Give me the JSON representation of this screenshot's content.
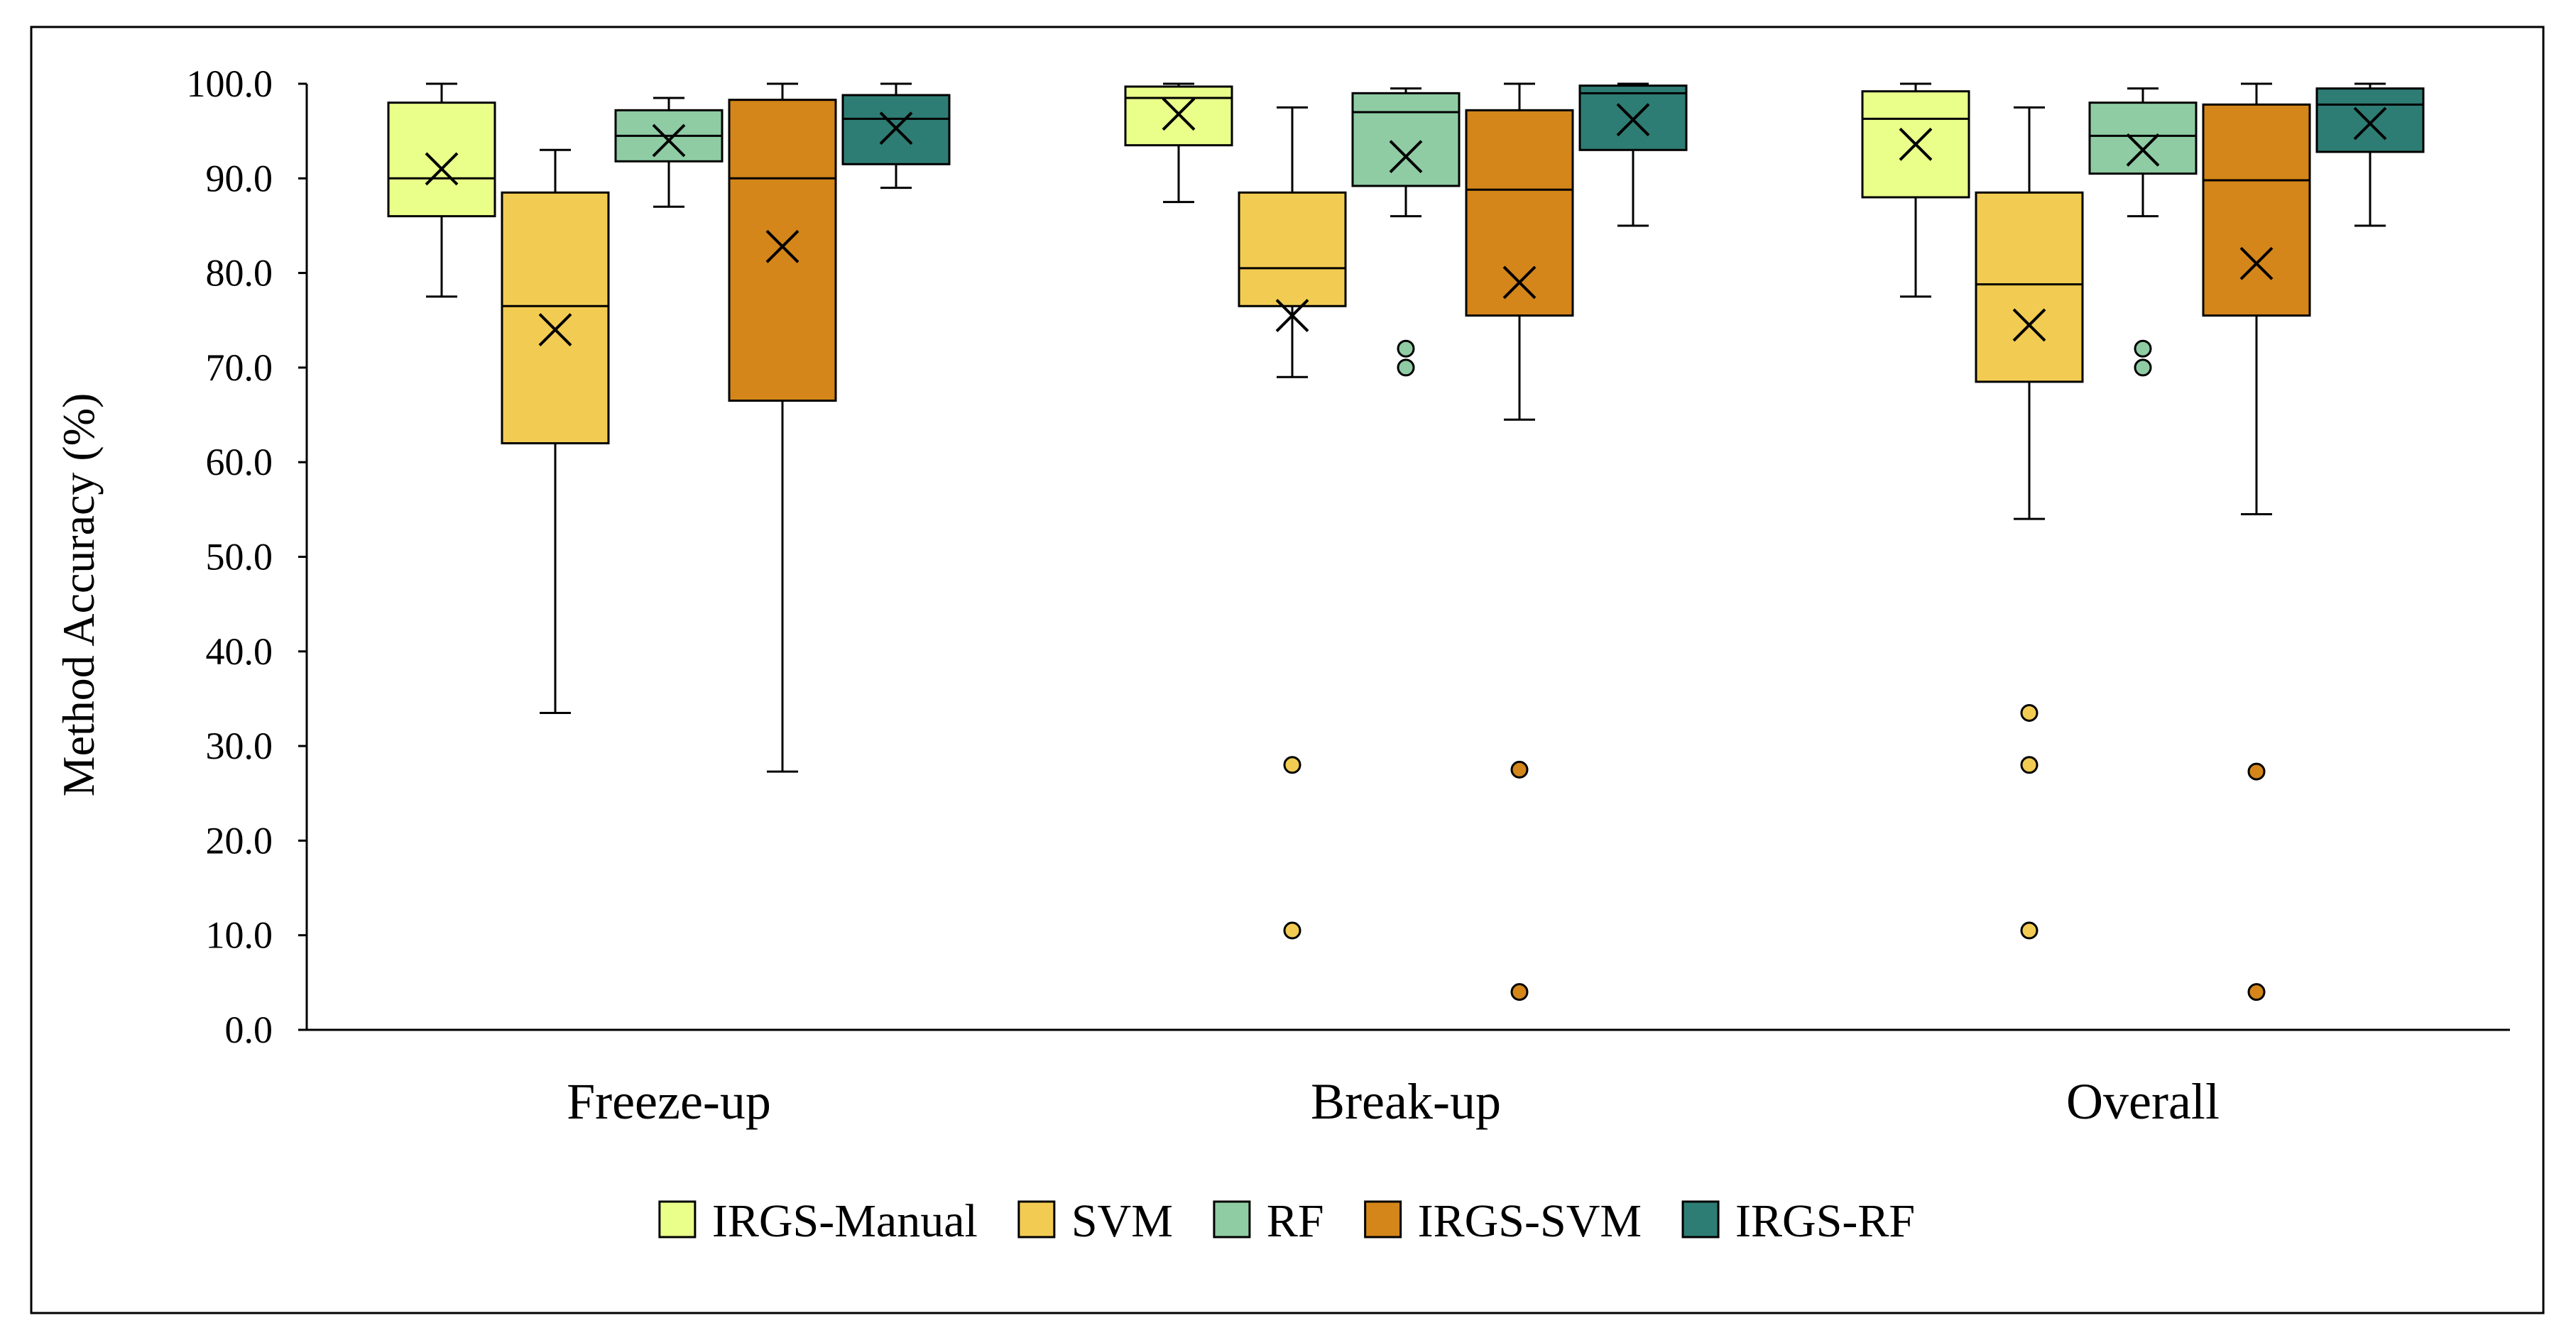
{
  "chart_data": {
    "type": "boxplot",
    "title": "",
    "xlabel": "",
    "ylabel": "Method Accuracy (%)",
    "ylim": [
      0,
      100
    ],
    "yticks": [
      0,
      10,
      20,
      30,
      40,
      50,
      60,
      70,
      80,
      90,
      100
    ],
    "ytick_labels": [
      "0.0",
      "10.0",
      "20.0",
      "30.0",
      "40.0",
      "50.0",
      "60.0",
      "70.0",
      "80.0",
      "90.0",
      "100.0"
    ],
    "categories": [
      "Freeze-up",
      "Break-up",
      "Overall"
    ],
    "legend_position": "bottom",
    "series": [
      {
        "name": "IRGS-Manual",
        "color": "#EAFF8A",
        "boxes": [
          {
            "min": 77.5,
            "q1": 86.0,
            "median": 90.0,
            "q3": 98.0,
            "max": 100.0,
            "mean": 91.0,
            "outliers": []
          },
          {
            "min": 87.5,
            "q1": 93.5,
            "median": 98.5,
            "q3": 99.7,
            "max": 100.0,
            "mean": 96.8,
            "outliers": []
          },
          {
            "min": 77.5,
            "q1": 88.0,
            "median": 96.3,
            "q3": 99.2,
            "max": 100.0,
            "mean": 93.6,
            "outliers": []
          }
        ]
      },
      {
        "name": "SVM",
        "color": "#F2CC52",
        "boxes": [
          {
            "min": 33.5,
            "q1": 62.0,
            "median": 76.5,
            "q3": 88.5,
            "max": 93.0,
            "mean": 74.0,
            "outliers": []
          },
          {
            "min": 69.0,
            "q1": 76.5,
            "median": 80.5,
            "q3": 88.5,
            "max": 97.5,
            "mean": 75.5,
            "outliers": [
              28.0,
              10.5
            ]
          },
          {
            "min": 54.0,
            "q1": 68.5,
            "median": 78.8,
            "q3": 88.5,
            "max": 97.5,
            "mean": 74.5,
            "outliers": [
              33.5,
              28.0,
              10.5
            ]
          }
        ]
      },
      {
        "name": "RF",
        "color": "#8FCCA4",
        "boxes": [
          {
            "min": 87.0,
            "q1": 91.8,
            "median": 94.5,
            "q3": 97.2,
            "max": 98.5,
            "mean": 94.0,
            "outliers": []
          },
          {
            "min": 86.0,
            "q1": 89.2,
            "median": 97.0,
            "q3": 99.0,
            "max": 99.5,
            "mean": 92.3,
            "outliers": [
              72.0,
              70.0
            ]
          },
          {
            "min": 86.0,
            "q1": 90.5,
            "median": 94.5,
            "q3": 98.0,
            "max": 99.5,
            "mean": 93.0,
            "outliers": [
              72.0,
              70.0
            ]
          }
        ]
      },
      {
        "name": "IRGS-SVM",
        "color": "#D4861A",
        "boxes": [
          {
            "min": 27.3,
            "q1": 66.5,
            "median": 90.0,
            "q3": 98.3,
            "max": 100.0,
            "mean": 82.8,
            "outliers": []
          },
          {
            "min": 64.5,
            "q1": 75.5,
            "median": 88.8,
            "q3": 97.2,
            "max": 100.0,
            "mean": 79.0,
            "outliers": [
              27.5,
              4.0
            ]
          },
          {
            "min": 54.5,
            "q1": 75.5,
            "median": 89.8,
            "q3": 97.8,
            "max": 100.0,
            "mean": 81.0,
            "outliers": [
              27.3,
              4.0
            ]
          }
        ]
      },
      {
        "name": "IRGS-RF",
        "color": "#2E7D74",
        "boxes": [
          {
            "min": 89.0,
            "q1": 91.5,
            "median": 96.3,
            "q3": 98.8,
            "max": 100.0,
            "mean": 95.3,
            "outliers": []
          },
          {
            "min": 85.0,
            "q1": 93.0,
            "median": 99.0,
            "q3": 99.8,
            "max": 100.0,
            "mean": 96.2,
            "outliers": []
          },
          {
            "min": 85.0,
            "q1": 92.8,
            "median": 97.8,
            "q3": 99.5,
            "max": 100.0,
            "mean": 95.8,
            "outliers": []
          }
        ]
      }
    ]
  }
}
